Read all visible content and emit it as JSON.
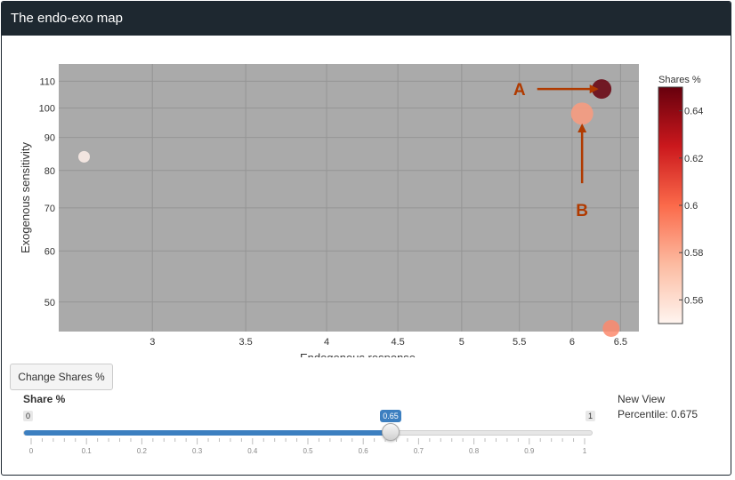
{
  "panel": {
    "title": "The endo-exo map"
  },
  "chart_data": {
    "type": "scatter",
    "xlabel": "Endogenous response",
    "ylabel": "Exogenous sensitivity",
    "xlim": [
      2.57,
      6.7
    ],
    "ylim": [
      45,
      117
    ],
    "x_scale": "log",
    "y_scale": "log",
    "x_ticks": [
      3,
      3.5,
      4,
      4.5,
      5,
      5.5,
      6,
      6.5
    ],
    "x_tick_labels": [
      "3",
      "3.5",
      "4",
      "4.5",
      "5",
      "5.5",
      "6",
      "6.5"
    ],
    "y_ticks": [
      50,
      60,
      70,
      80,
      90,
      100,
      110
    ],
    "y_tick_labels": [
      "50",
      "60",
      "70",
      "80",
      "90",
      "100",
      "110"
    ],
    "grid": true,
    "plot_background": "#aaaaaa",
    "points": [
      {
        "x": 2.68,
        "y": 84,
        "share": 0.552,
        "size": 13
      },
      {
        "x": 6.3,
        "y": 107,
        "share": 0.655,
        "size": 22
      },
      {
        "x": 6.1,
        "y": 98,
        "share": 0.585,
        "size": 25
      },
      {
        "x": 6.4,
        "y": 45.5,
        "share": 0.59,
        "size": 19
      }
    ],
    "colorbar": {
      "title": "Shares %",
      "range": [
        0.55,
        0.65
      ],
      "ticks": [
        0.56,
        0.58,
        0.6,
        0.62,
        0.64
      ],
      "tick_labels": [
        "0.56",
        "0.58",
        "0.6",
        "0.62",
        "0.64"
      ],
      "colors": [
        "#fff5f0",
        "#fcbba1",
        "#fb6a4a",
        "#cb181d",
        "#67000d"
      ]
    },
    "annotations": [
      {
        "text": "A",
        "x": 5.5,
        "y": 107,
        "arrow_to_x": 6.25,
        "arrow_to_y": 107,
        "color": "#b03a00"
      },
      {
        "text": "B",
        "x": 6.1,
        "y": 69.5,
        "arrow_to_x": 6.1,
        "arrow_to_y": 94,
        "color": "#b03a00"
      }
    ]
  },
  "controls": {
    "change_button_label": "Change Shares %",
    "slider_label": "Share %",
    "slider_min_label": "0",
    "slider_max_label": "1",
    "slider_value": 0.65,
    "slider_value_label": "0.65",
    "slider_range": [
      0,
      1
    ],
    "slider_tick_labels": [
      "0",
      "0.1",
      "0.2",
      "0.3",
      "0.4",
      "0.5",
      "0.6",
      "0.7",
      "0.8",
      "0.9",
      "1"
    ],
    "accent": "#3c7fc0"
  },
  "side": {
    "title": "New View",
    "percentile": "Percentile: 0.675"
  }
}
